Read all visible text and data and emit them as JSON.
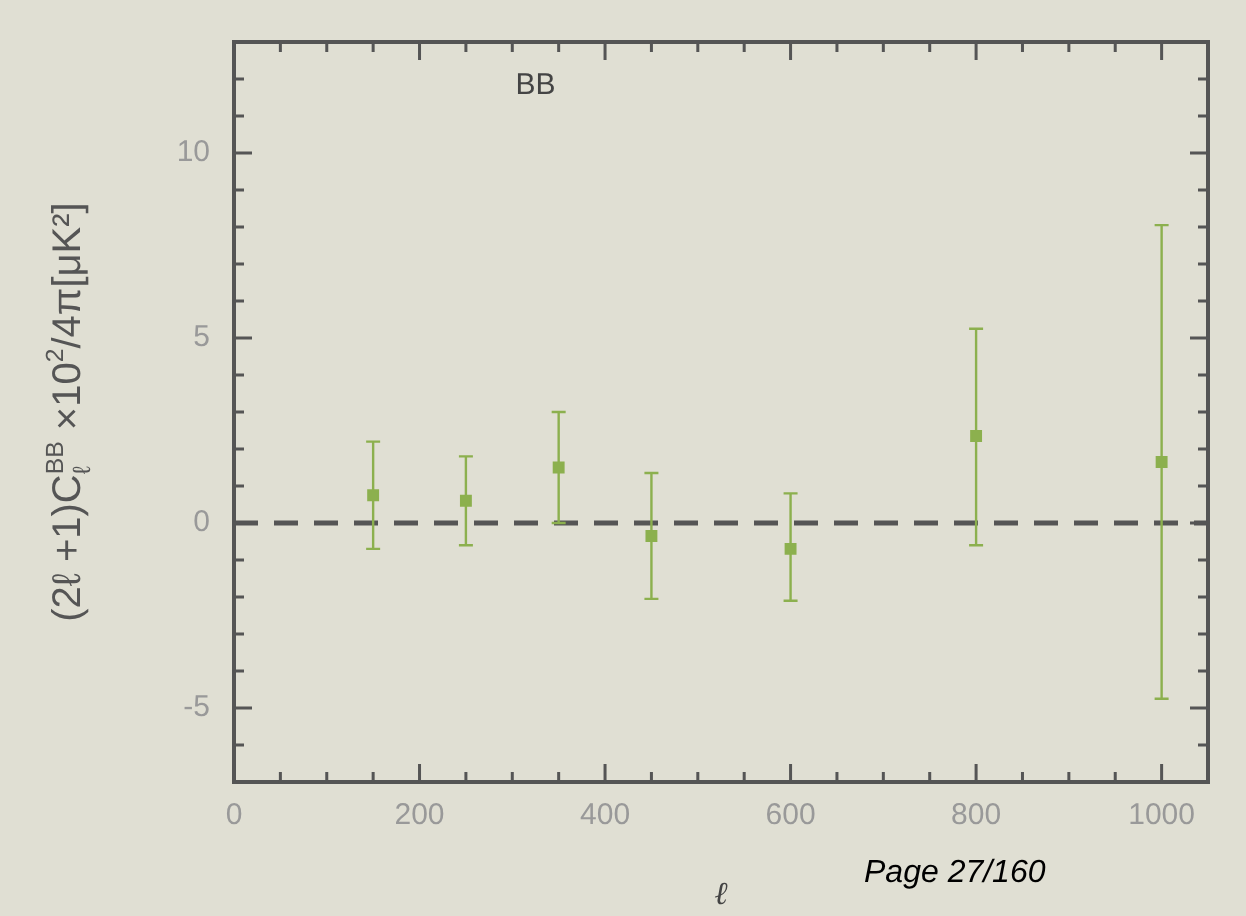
{
  "chart_data": {
    "type": "scatter",
    "title": "BB",
    "xlabel": "ℓ",
    "ylabel": "(2ℓ +1)C$_{ℓ}$$^{BB}$ ×10$^{2}$/4π[μK²]",
    "x": [
      150,
      250,
      350,
      450,
      600,
      800,
      1000
    ],
    "series": [
      {
        "color": "#8cb04e",
        "values": [
          0.75,
          0.6,
          1.5,
          -0.35,
          -0.7,
          2.35,
          1.65
        ],
        "errors": [
          [
            -0.7,
            2.2
          ],
          [
            -0.6,
            1.8
          ],
          [
            0,
            3.0
          ],
          [
            -2.05,
            1.35
          ],
          [
            -2.1,
            0.8
          ],
          [
            -0.6,
            5.25
          ],
          [
            -4.75,
            8.05
          ]
        ]
      }
    ],
    "xlim": [
      0,
      1050
    ],
    "ylim": [
      -7,
      13
    ],
    "xticks": [
      0,
      {
        "value": 50,
        "label": null
      },
      {
        "value": 100,
        "label": null
      },
      {
        "value": 150,
        "label": null
      },
      200,
      {
        "value": 250,
        "label": null
      },
      {
        "value": 300,
        "label": null
      },
      {
        "value": 350,
        "label": null
      },
      400,
      {
        "value": 450,
        "label": null
      },
      {
        "value": 500,
        "label": null
      },
      {
        "value": 550,
        "label": null
      },
      600,
      {
        "value": 650,
        "label": null
      },
      {
        "value": 700,
        "label": null
      },
      {
        "value": 750,
        "label": null
      },
      800,
      {
        "value": 850,
        "label": null
      },
      {
        "value": 900,
        "label": null
      },
      {
        "value": 950,
        "label": null
      },
      1000
    ],
    "yticks": [
      {
        "value": -6,
        "label": null
      },
      -5,
      {
        "value": -4,
        "label": null
      },
      {
        "value": -3,
        "label": null
      },
      {
        "value": -2,
        "label": null
      },
      {
        "value": -1,
        "label": null
      },
      0,
      {
        "value": 1,
        "label": null
      },
      {
        "value": 2,
        "label": null
      },
      {
        "value": 3,
        "label": null
      },
      {
        "value": 4,
        "label": null
      },
      5,
      {
        "value": 6,
        "label": null
      },
      {
        "value": 7,
        "label": null
      },
      {
        "value": 8,
        "label": null
      },
      {
        "value": 9,
        "label": null
      },
      10,
      {
        "value": 11,
        "label": null
      },
      {
        "value": 12,
        "label": null
      }
    ],
    "ref_lines": [
      {
        "axis": "y",
        "value": 0,
        "color": "#555555",
        "line_style": "dashed"
      }
    ],
    "annotations": [
      "Page 27/160"
    ],
    "marker": "square",
    "grid": false,
    "legend": false
  }
}
